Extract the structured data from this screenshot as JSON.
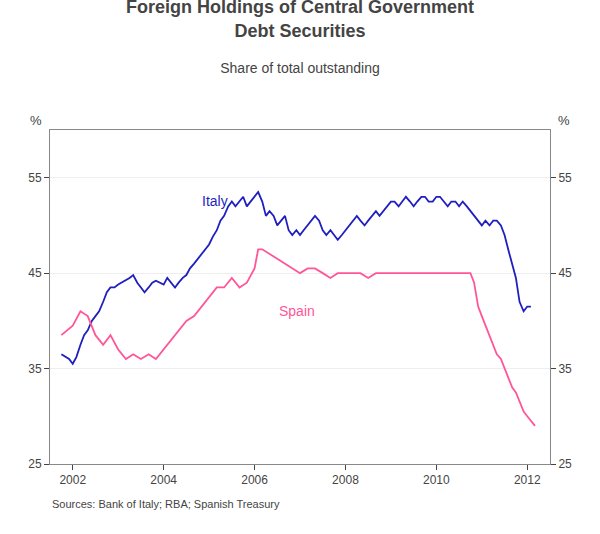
{
  "chart_data": {
    "type": "line",
    "title": "Foreign Holdings of Central Government\nDebt Securities",
    "subtitle": "Share of total outstanding",
    "ylabel": "%",
    "y2label": "%",
    "source": "Sources: Bank of Italy; RBA; Spanish Treasury",
    "xlim": [
      2001.5,
      2012.5
    ],
    "xticks": [
      2002,
      2004,
      2006,
      2008,
      2010,
      2012
    ],
    "ylim": [
      25,
      60
    ],
    "yticks": [
      25,
      35,
      45,
      55
    ],
    "y2lim": [
      25,
      60
    ],
    "y2ticks": [
      25,
      35,
      45,
      55
    ],
    "grid": true,
    "series": [
      {
        "name": "Italy",
        "color": "#1f1fbf",
        "x": [
          2001.75,
          2001.92,
          2002.0,
          2002.08,
          2002.17,
          2002.25,
          2002.33,
          2002.42,
          2002.5,
          2002.58,
          2002.67,
          2002.75,
          2002.83,
          2002.92,
          2003.0,
          2003.08,
          2003.17,
          2003.25,
          2003.33,
          2003.42,
          2003.5,
          2003.58,
          2003.67,
          2003.75,
          2003.83,
          2003.92,
          2004.0,
          2004.08,
          2004.17,
          2004.25,
          2004.33,
          2004.42,
          2004.5,
          2004.58,
          2004.67,
          2004.75,
          2004.83,
          2004.92,
          2005.0,
          2005.08,
          2005.17,
          2005.25,
          2005.33,
          2005.42,
          2005.5,
          2005.58,
          2005.67,
          2005.75,
          2005.83,
          2005.92,
          2006.0,
          2006.08,
          2006.17,
          2006.25,
          2006.33,
          2006.42,
          2006.5,
          2006.58,
          2006.67,
          2006.75,
          2006.83,
          2006.92,
          2007.0,
          2007.08,
          2007.17,
          2007.25,
          2007.33,
          2007.42,
          2007.5,
          2007.58,
          2007.67,
          2007.75,
          2007.83,
          2007.92,
          2008.0,
          2008.08,
          2008.17,
          2008.25,
          2008.33,
          2008.42,
          2008.5,
          2008.58,
          2008.67,
          2008.75,
          2008.83,
          2008.92,
          2009.0,
          2009.08,
          2009.17,
          2009.25,
          2009.33,
          2009.42,
          2009.5,
          2009.58,
          2009.67,
          2009.75,
          2009.83,
          2009.92,
          2010.0,
          2010.08,
          2010.17,
          2010.25,
          2010.33,
          2010.42,
          2010.5,
          2010.58,
          2010.67,
          2010.75,
          2010.83,
          2010.92,
          2011.0,
          2011.08,
          2011.17,
          2011.25,
          2011.33,
          2011.42,
          2011.5,
          2011.58,
          2011.67,
          2011.75,
          2011.83,
          2011.92,
          2012.0,
          2012.08
        ],
        "values": [
          36.5,
          36.0,
          35.5,
          36.2,
          37.5,
          38.5,
          39.0,
          40.0,
          40.5,
          41.0,
          42.0,
          43.0,
          43.5,
          43.5,
          43.8,
          44.0,
          44.3,
          44.5,
          44.8,
          44.0,
          43.5,
          43.0,
          43.5,
          44.0,
          44.2,
          44.0,
          43.8,
          44.5,
          44.0,
          43.5,
          44.0,
          44.5,
          44.8,
          45.5,
          46.0,
          46.5,
          47.0,
          47.5,
          48.0,
          48.8,
          49.5,
          50.5,
          51.0,
          52.0,
          52.5,
          52.0,
          52.5,
          53.0,
          52.0,
          52.5,
          53.0,
          53.5,
          52.5,
          51.0,
          51.5,
          51.0,
          50.0,
          50.5,
          51.0,
          49.5,
          49.0,
          49.5,
          49.0,
          49.5,
          50.0,
          50.5,
          51.0,
          50.5,
          49.5,
          49.0,
          49.5,
          49.0,
          48.5,
          49.0,
          49.5,
          50.0,
          50.5,
          51.0,
          50.5,
          50.0,
          50.5,
          51.0,
          51.5,
          51.0,
          51.5,
          52.0,
          52.5,
          52.5,
          52.0,
          52.5,
          53.0,
          52.5,
          52.0,
          52.5,
          53.0,
          53.0,
          52.5,
          52.5,
          53.0,
          53.0,
          52.5,
          52.0,
          52.5,
          52.5,
          52.0,
          52.5,
          52.0,
          51.5,
          51.0,
          50.5,
          50.0,
          50.5,
          50.0,
          50.5,
          50.5,
          50.0,
          49.0,
          47.5,
          46.0,
          44.5,
          42.0,
          41.0,
          41.5,
          41.5
        ]
      },
      {
        "name": "Spain",
        "color": "#ff5599",
        "x": [
          2001.75,
          2002.0,
          2002.17,
          2002.33,
          2002.5,
          2002.67,
          2002.83,
          2003.0,
          2003.17,
          2003.33,
          2003.5,
          2003.67,
          2003.83,
          2004.0,
          2004.17,
          2004.33,
          2004.5,
          2004.67,
          2004.83,
          2005.0,
          2005.17,
          2005.33,
          2005.5,
          2005.67,
          2005.83,
          2006.0,
          2006.08,
          2006.17,
          2006.33,
          2006.5,
          2006.67,
          2006.83,
          2007.0,
          2007.17,
          2007.33,
          2007.5,
          2007.67,
          2007.83,
          2008.0,
          2008.17,
          2008.33,
          2008.5,
          2008.67,
          2008.83,
          2009.0,
          2009.17,
          2009.33,
          2009.5,
          2009.67,
          2009.83,
          2010.0,
          2010.17,
          2010.33,
          2010.5,
          2010.67,
          2010.75,
          2010.83,
          2010.92,
          2011.0,
          2011.08,
          2011.17,
          2011.25,
          2011.33,
          2011.42,
          2011.5,
          2011.58,
          2011.67,
          2011.75,
          2011.83,
          2011.92,
          2012.0,
          2012.08,
          2012.17
        ],
        "values": [
          38.5,
          39.5,
          41.0,
          40.5,
          38.5,
          37.5,
          38.5,
          37.0,
          36.0,
          36.5,
          36.0,
          36.5,
          36.0,
          37.0,
          38.0,
          39.0,
          40.0,
          40.5,
          41.5,
          42.5,
          43.5,
          43.5,
          44.5,
          43.5,
          44.0,
          45.5,
          47.5,
          47.5,
          47.0,
          46.5,
          46.0,
          45.5,
          45.0,
          45.5,
          45.5,
          45.0,
          44.5,
          45.0,
          45.0,
          45.0,
          45.0,
          44.5,
          45.0,
          45.0,
          45.0,
          45.0,
          45.0,
          45.0,
          45.0,
          45.0,
          45.0,
          45.0,
          45.0,
          45.0,
          45.0,
          45.0,
          44.0,
          41.5,
          40.5,
          39.5,
          38.5,
          37.5,
          36.5,
          36.0,
          35.0,
          34.0,
          33.0,
          32.5,
          31.5,
          30.5,
          30.0,
          29.5,
          29.0
        ]
      }
    ],
    "annotations": [
      {
        "text": "Italy",
        "x": 2004.8,
        "y": 51.5,
        "color": "#1f1fbf"
      },
      {
        "text": "Spain",
        "x": 2006.5,
        "y": 40.0,
        "color": "#ff5599"
      }
    ]
  }
}
